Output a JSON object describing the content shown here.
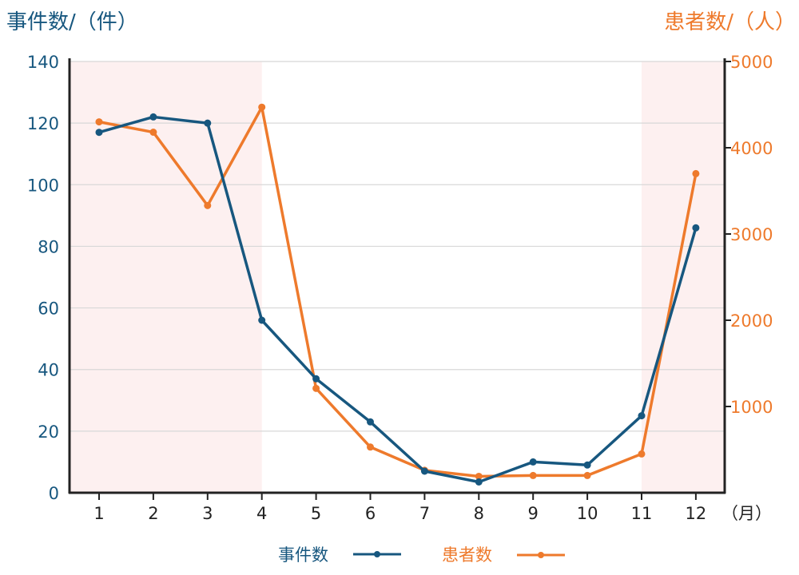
{
  "colors": {
    "left": "#17577f",
    "right": "#ee7a2c",
    "shade": "#fdf0f0",
    "grid": "#d8d8d8",
    "axis": "#222222"
  },
  "chart_data": {
    "type": "line",
    "left_axis_title": "事件数/（件）",
    "right_axis_title": "患者数/（人）",
    "x_unit": "（月）",
    "categories": [
      "1",
      "2",
      "3",
      "4",
      "5",
      "6",
      "7",
      "8",
      "9",
      "10",
      "11",
      "12"
    ],
    "left_ticks": [
      "0",
      "20",
      "40",
      "60",
      "80",
      "100",
      "120",
      "140"
    ],
    "right_ticks": [
      "1000",
      "2000",
      "3000",
      "4000",
      "5000"
    ],
    "ylim_left": [
      0,
      140
    ],
    "ylim_right": [
      0,
      5000
    ],
    "shaded_months": [
      [
        1,
        4
      ],
      [
        11,
        12
      ]
    ],
    "grid": true,
    "legend_position": "bottom",
    "series": [
      {
        "name": "事件数",
        "axis": "left",
        "values": [
          117,
          122,
          120,
          56,
          37,
          23,
          7,
          3.5,
          10,
          9,
          25,
          86
        ]
      },
      {
        "name": "患者数",
        "axis": "right",
        "values": [
          4300,
          4180,
          3330,
          4470,
          1210,
          530,
          260,
          190,
          200,
          200,
          450,
          3700
        ]
      }
    ]
  }
}
